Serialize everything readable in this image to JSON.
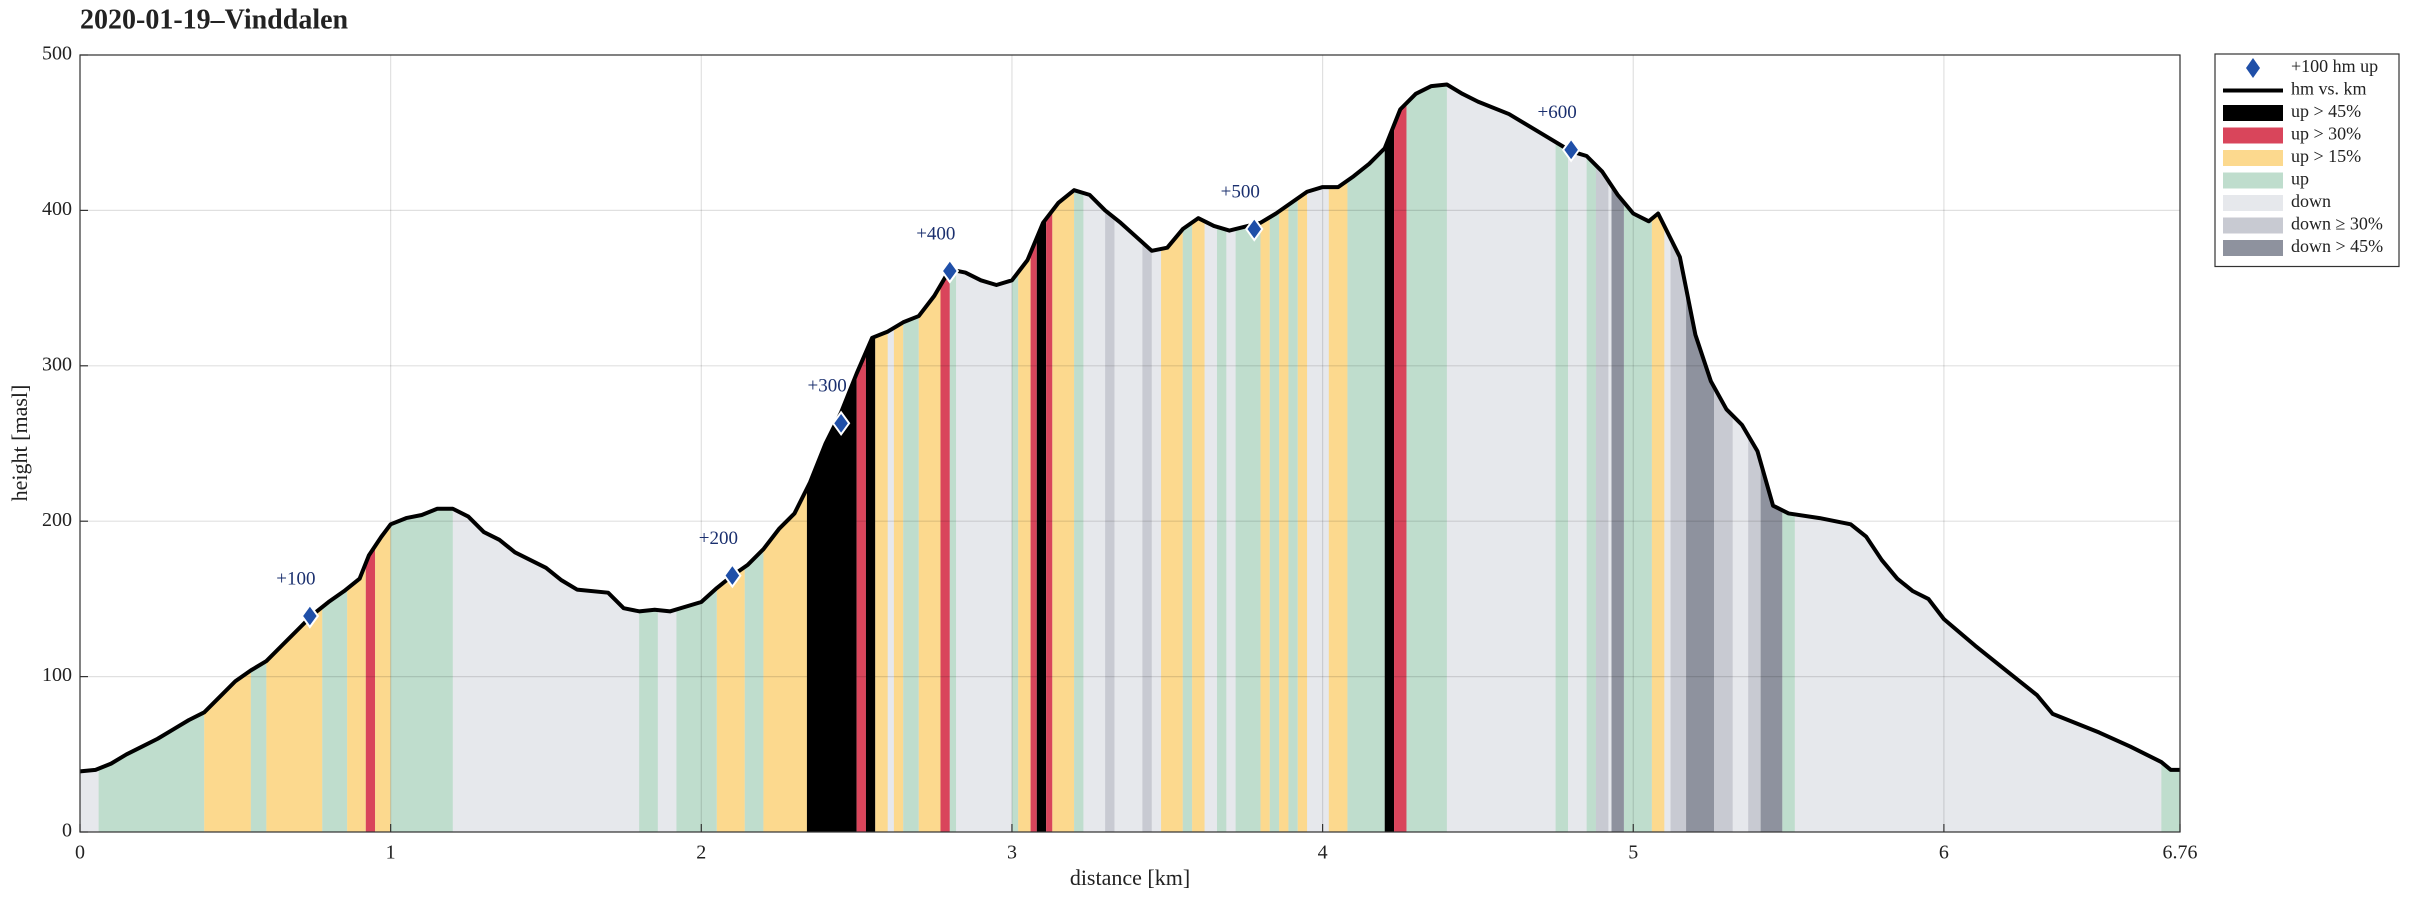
{
  "chart_data": {
    "type": "area",
    "title": "2020-01-19–Vinddalen",
    "xlabel": "distance [km]",
    "ylabel": "height [masl]",
    "xlim": [
      0,
      6.76
    ],
    "ylim": [
      0,
      500
    ],
    "xticks": [
      0,
      1,
      2,
      3,
      4,
      5,
      6,
      6.76
    ],
    "yticks": [
      0,
      100,
      200,
      300,
      400,
      500
    ],
    "grid": true,
    "markers": {
      "name": "+100 hm up",
      "color": "#1f4fa8",
      "x": [
        0.74,
        2.1,
        2.45,
        2.8,
        3.78,
        4.8
      ],
      "values": [
        139,
        165,
        263,
        361,
        388,
        439
      ],
      "labels": [
        "+100",
        "+200",
        "+300",
        "+400",
        "+500",
        "+600"
      ]
    },
    "profile": {
      "name": "hm vs. km",
      "color": "#000000",
      "x": [
        0,
        0.05,
        0.1,
        0.15,
        0.2,
        0.25,
        0.3,
        0.35,
        0.4,
        0.45,
        0.5,
        0.55,
        0.6,
        0.65,
        0.7,
        0.75,
        0.8,
        0.85,
        0.9,
        0.93,
        0.97,
        1.0,
        1.05,
        1.1,
        1.15,
        1.2,
        1.25,
        1.3,
        1.35,
        1.4,
        1.5,
        1.55,
        1.6,
        1.7,
        1.75,
        1.8,
        1.85,
        1.9,
        2.0,
        2.05,
        2.1,
        2.15,
        2.2,
        2.25,
        2.3,
        2.35,
        2.4,
        2.45,
        2.5,
        2.55,
        2.6,
        2.65,
        2.7,
        2.75,
        2.8,
        2.85,
        2.9,
        2.95,
        3.0,
        3.05,
        3.1,
        3.15,
        3.2,
        3.25,
        3.3,
        3.35,
        3.4,
        3.45,
        3.5,
        3.55,
        3.6,
        3.65,
        3.7,
        3.8,
        3.85,
        3.9,
        3.95,
        4.0,
        4.05,
        4.1,
        4.15,
        4.2,
        4.25,
        4.3,
        4.35,
        4.4,
        4.45,
        4.5,
        4.6,
        4.7,
        4.8,
        4.85,
        4.9,
        4.95,
        5.0,
        5.05,
        5.08,
        5.15,
        5.2,
        5.25,
        5.3,
        5.35,
        5.4,
        5.45,
        5.5,
        5.6,
        5.7,
        5.75,
        5.8,
        5.85,
        5.9,
        5.95,
        6.0,
        6.1,
        6.2,
        6.3,
        6.35,
        6.5,
        6.6,
        6.7,
        6.73,
        6.76
      ],
      "values": [
        39,
        40,
        44,
        50,
        55,
        60,
        66,
        72,
        77,
        87,
        97,
        104,
        110,
        120,
        130,
        140,
        148,
        155,
        163,
        178,
        190,
        198,
        202,
        204,
        208,
        208,
        203,
        193,
        188,
        180,
        170,
        162,
        156,
        154,
        144,
        142,
        143,
        142,
        148,
        157,
        165,
        172,
        182,
        195,
        205,
        225,
        250,
        270,
        295,
        318,
        322,
        328,
        332,
        345,
        362,
        360,
        355,
        352,
        355,
        368,
        392,
        405,
        413,
        410,
        400,
        392,
        383,
        374,
        376,
        388,
        395,
        390,
        387,
        392,
        398,
        405,
        412,
        415,
        415,
        422,
        430,
        440,
        465,
        475,
        480,
        481,
        475,
        470,
        462,
        450,
        438,
        435,
        425,
        410,
        398,
        393,
        398,
        370,
        320,
        290,
        272,
        262,
        245,
        210,
        205,
        202,
        198,
        190,
        175,
        163,
        155,
        150,
        137,
        120,
        104,
        88,
        76,
        64,
        55,
        45,
        40,
        40
      ]
    },
    "bands": [
      {
        "name": "up > 45%",
        "color": "#000000"
      },
      {
        "name": "up > 30%",
        "color": "#d9455b"
      },
      {
        "name": "up > 15%",
        "color": "#fcd98e"
      },
      {
        "name": "up",
        "color": "#bfddcd"
      },
      {
        "name": "down",
        "color": "#e6e8ec"
      },
      {
        "name": "down ≥ 30%",
        "color": "#c8cad2"
      },
      {
        "name": "down > 45%",
        "color": "#8e929e"
      }
    ],
    "segments": [
      {
        "name": "up",
        "from": 0.06,
        "to": 0.4
      },
      {
        "name": "up > 15%",
        "from": 0.4,
        "to": 0.55
      },
      {
        "name": "up",
        "from": 0.55,
        "to": 0.6
      },
      {
        "name": "up > 15%",
        "from": 0.6,
        "to": 0.78
      },
      {
        "name": "up",
        "from": 0.78,
        "to": 0.86
      },
      {
        "name": "up > 15%",
        "from": 0.86,
        "to": 0.92
      },
      {
        "name": "up > 30%",
        "from": 0.92,
        "to": 0.95
      },
      {
        "name": "up > 15%",
        "from": 0.95,
        "to": 1.0
      },
      {
        "name": "up",
        "from": 1.0,
        "to": 1.2
      },
      {
        "name": "up",
        "from": 1.8,
        "to": 1.86
      },
      {
        "name": "up",
        "from": 1.92,
        "to": 2.05
      },
      {
        "name": "up > 15%",
        "from": 2.05,
        "to": 2.14
      },
      {
        "name": "up",
        "from": 2.14,
        "to": 2.2
      },
      {
        "name": "up > 15%",
        "from": 2.2,
        "to": 2.34
      },
      {
        "name": "up > 45%",
        "from": 2.34,
        "to": 2.5
      },
      {
        "name": "up > 30%",
        "from": 2.5,
        "to": 2.53
      },
      {
        "name": "up > 45%",
        "from": 2.53,
        "to": 2.56
      },
      {
        "name": "up > 15%",
        "from": 2.56,
        "to": 2.6
      },
      {
        "name": "up > 15%",
        "from": 2.62,
        "to": 2.65
      },
      {
        "name": "up",
        "from": 2.65,
        "to": 2.7
      },
      {
        "name": "up > 15%",
        "from": 2.7,
        "to": 2.77
      },
      {
        "name": "up > 30%",
        "from": 2.77,
        "to": 2.8
      },
      {
        "name": "up",
        "from": 2.8,
        "to": 2.82
      },
      {
        "name": "up",
        "from": 3.0,
        "to": 3.02
      },
      {
        "name": "up > 15%",
        "from": 3.02,
        "to": 3.06
      },
      {
        "name": "up > 30%",
        "from": 3.06,
        "to": 3.08
      },
      {
        "name": "up > 45%",
        "from": 3.08,
        "to": 3.11
      },
      {
        "name": "up > 30%",
        "from": 3.11,
        "to": 3.13
      },
      {
        "name": "up > 15%",
        "from": 3.13,
        "to": 3.2
      },
      {
        "name": "up",
        "from": 3.2,
        "to": 3.23
      },
      {
        "name": "down ≥ 30%",
        "from": 3.3,
        "to": 3.33
      },
      {
        "name": "down ≥ 30%",
        "from": 3.42,
        "to": 3.45
      },
      {
        "name": "up > 15%",
        "from": 3.48,
        "to": 3.55
      },
      {
        "name": "up",
        "from": 3.55,
        "to": 3.58
      },
      {
        "name": "up > 15%",
        "from": 3.58,
        "to": 3.62
      },
      {
        "name": "up",
        "from": 3.66,
        "to": 3.69
      },
      {
        "name": "up",
        "from": 3.72,
        "to": 3.8
      },
      {
        "name": "up > 15%",
        "from": 3.8,
        "to": 3.83
      },
      {
        "name": "up",
        "from": 3.83,
        "to": 3.86
      },
      {
        "name": "up > 15%",
        "from": 3.86,
        "to": 3.89
      },
      {
        "name": "up",
        "from": 3.89,
        "to": 3.92
      },
      {
        "name": "up > 15%",
        "from": 3.92,
        "to": 3.95
      },
      {
        "name": "up > 15%",
        "from": 4.02,
        "to": 4.08
      },
      {
        "name": "up",
        "from": 4.08,
        "to": 4.2
      },
      {
        "name": "up > 45%",
        "from": 4.2,
        "to": 4.23
      },
      {
        "name": "up > 30%",
        "from": 4.23,
        "to": 4.27
      },
      {
        "name": "up",
        "from": 4.27,
        "to": 4.4
      },
      {
        "name": "up",
        "from": 4.75,
        "to": 4.79
      },
      {
        "name": "up",
        "from": 4.85,
        "to": 4.88
      },
      {
        "name": "down ≥ 30%",
        "from": 4.88,
        "to": 4.92
      },
      {
        "name": "down > 45%",
        "from": 4.93,
        "to": 4.97
      },
      {
        "name": "up",
        "from": 4.97,
        "to": 5.06
      },
      {
        "name": "up > 15%",
        "from": 5.06,
        "to": 5.1
      },
      {
        "name": "down ≥ 30%",
        "from": 5.12,
        "to": 5.17
      },
      {
        "name": "down > 45%",
        "from": 5.17,
        "to": 5.26
      },
      {
        "name": "down ≥ 30%",
        "from": 5.26,
        "to": 5.32
      },
      {
        "name": "down ≥ 30%",
        "from": 5.37,
        "to": 5.41
      },
      {
        "name": "down > 45%",
        "from": 5.41,
        "to": 5.48
      },
      {
        "name": "up",
        "from": 5.48,
        "to": 5.52
      },
      {
        "name": "up",
        "from": 6.7,
        "to": 6.76
      }
    ]
  }
}
